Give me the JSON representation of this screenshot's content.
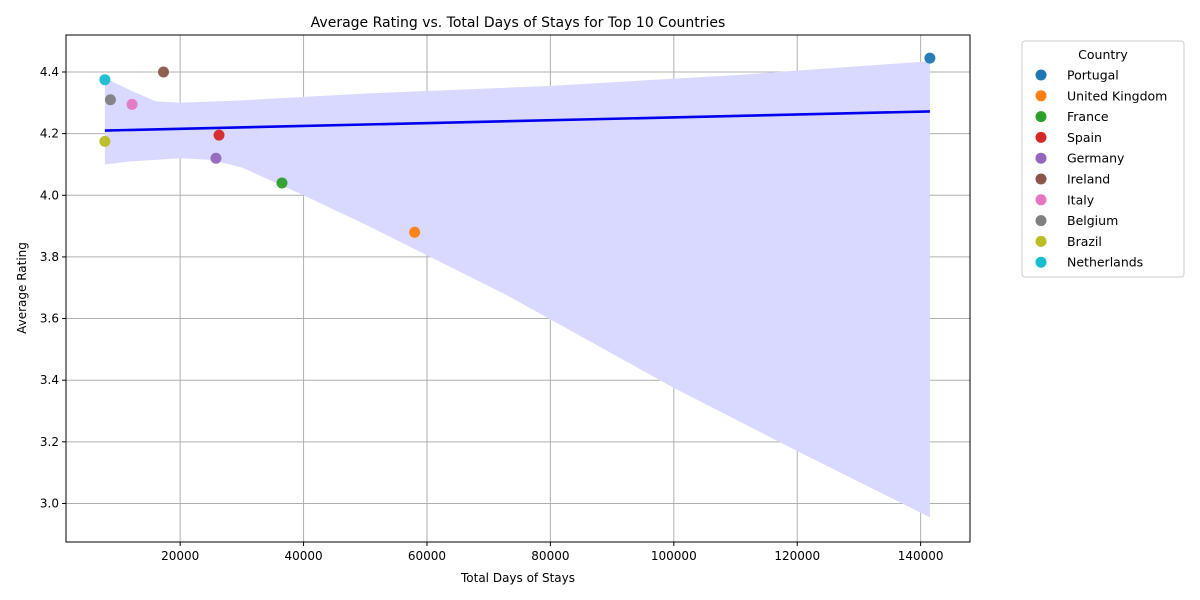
{
  "chart_data": {
    "type": "scatter",
    "title": "Average Rating vs. Total Days of Stays for Top 10 Countries",
    "xlabel": "Total Days of Stays",
    "ylabel": "Average Rating",
    "xlim": [
      1500,
      148000
    ],
    "ylim": [
      2.875,
      4.52
    ],
    "xticks": [
      20000,
      40000,
      60000,
      80000,
      100000,
      120000,
      140000
    ],
    "xtick_labels": [
      "20000",
      "40000",
      "60000",
      "80000",
      "100000",
      "120000",
      "140000"
    ],
    "yticks": [
      3.0,
      3.2,
      3.4,
      3.6,
      3.8,
      4.0,
      4.2,
      4.4
    ],
    "ytick_labels": [
      "3.0",
      "3.2",
      "3.4",
      "3.6",
      "3.8",
      "4.0",
      "4.2",
      "4.4"
    ],
    "grid": true,
    "legend": {
      "title": "Country",
      "placement": "outside-top-right"
    },
    "series": [
      {
        "name": "Portugal",
        "color": "#1f77b4",
        "x": 141500,
        "y": 4.445
      },
      {
        "name": "United Kingdom",
        "color": "#ff7f0e",
        "x": 58000,
        "y": 3.88
      },
      {
        "name": "France",
        "color": "#2ca02c",
        "x": 36500,
        "y": 4.04
      },
      {
        "name": "Spain",
        "color": "#d62728",
        "x": 26300,
        "y": 4.195
      },
      {
        "name": "Germany",
        "color": "#9467bd",
        "x": 25800,
        "y": 4.12
      },
      {
        "name": "Ireland",
        "color": "#8c564b",
        "x": 17300,
        "y": 4.4
      },
      {
        "name": "Italy",
        "color": "#e377c2",
        "x": 12200,
        "y": 4.295
      },
      {
        "name": "Belgium",
        "color": "#7f7f7f",
        "x": 8700,
        "y": 4.31
      },
      {
        "name": "Brazil",
        "color": "#bcbd22",
        "x": 7800,
        "y": 4.175
      },
      {
        "name": "Netherlands",
        "color": "#17becf",
        "x": 7800,
        "y": 4.375
      }
    ],
    "regression": {
      "color": "#0000ee",
      "band_color": "#d9d9ff",
      "line": [
        [
          7800,
          4.21
        ],
        [
          141500,
          4.272
        ]
      ],
      "band_upper": [
        [
          7800,
          4.38
        ],
        [
          12000,
          4.34
        ],
        [
          16000,
          4.305
        ],
        [
          20000,
          4.3
        ],
        [
          30000,
          4.308
        ],
        [
          50000,
          4.33
        ],
        [
          80000,
          4.355
        ],
        [
          110000,
          4.39
        ],
        [
          141500,
          4.435
        ]
      ],
      "band_lower": [
        [
          7800,
          4.1
        ],
        [
          12000,
          4.11
        ],
        [
          16000,
          4.115
        ],
        [
          20000,
          4.12
        ],
        [
          25000,
          4.115
        ],
        [
          30000,
          4.09
        ],
        [
          40000,
          4.0
        ],
        [
          50000,
          3.905
        ],
        [
          73000,
          3.675
        ],
        [
          100000,
          3.375
        ],
        [
          120000,
          3.17
        ],
        [
          141500,
          2.955
        ]
      ]
    }
  }
}
